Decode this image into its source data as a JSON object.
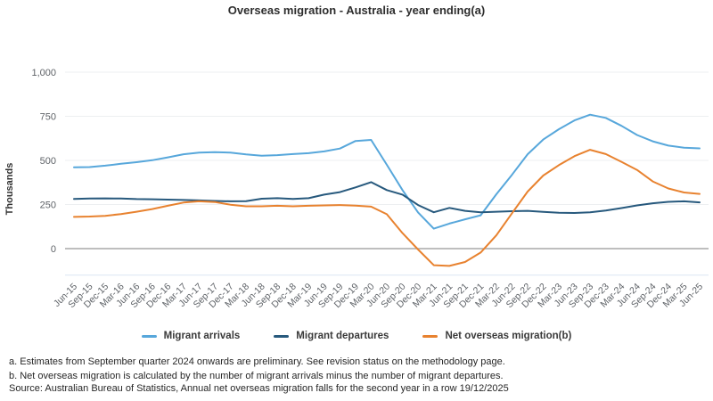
{
  "title": "Overseas migration - Australia - year ending(a)",
  "footnotes": [
    "a. Estimates from September quarter 2024 onwards are preliminary. See revision status on the methodology page.",
    "b. Net overseas migration is calculated by the number of migrant arrivals minus the number of migrant departures."
  ],
  "source": "Source: Australian Bureau of Statistics, Annual net overseas migration falls for the second year in a row 19/12/2025",
  "chart_data": {
    "type": "line",
    "title": "Overseas migration - Australia - year ending(a)",
    "xlabel": "",
    "ylabel": "Thousands",
    "ylim": [
      -150,
      1050
    ],
    "grid": true,
    "legend_position": "bottom",
    "yticks": [
      {
        "v": 0,
        "label": "0"
      },
      {
        "v": 250,
        "label": "250"
      },
      {
        "v": 500,
        "label": "500"
      },
      {
        "v": 750,
        "label": "750"
      },
      {
        "v": 1000,
        "label": "1,000"
      }
    ],
    "categories": [
      "Jun-15",
      "Sep-15",
      "Dec-15",
      "Mar-16",
      "Jun-16",
      "Sep-16",
      "Dec-16",
      "Mar-17",
      "Jun-17",
      "Sep-17",
      "Dec-17",
      "Mar-18",
      "Jun-18",
      "Sep-18",
      "Dec-18",
      "Mar-19",
      "Jun-19",
      "Sep-19",
      "Dec-19",
      "Mar-20",
      "Jun-20",
      "Sep-20",
      "Dec-20",
      "Mar-21",
      "Jun-21",
      "Sep-21",
      "Dec-21",
      "Mar-22",
      "Jun-22",
      "Sep-22",
      "Dec-22",
      "Mar-23",
      "Jun-23",
      "Sep-23",
      "Dec-23",
      "Mar-24",
      "Jun-24",
      "Sep-24",
      "Dec-24",
      "Mar-25",
      "Jun-25"
    ],
    "series": [
      {
        "name": "Migrant arrivals",
        "color": "#57A7DB",
        "values": [
          461,
          462,
          470,
          481,
          490,
          501,
          517,
          535,
          544,
          547,
          544,
          534,
          527,
          530,
          536,
          541,
          551,
          567,
          610,
          616,
          475,
          332,
          205,
          113,
          142,
          166,
          189,
          308,
          418,
          535,
          618,
          677,
          727,
          759,
          741,
          696,
          644,
          608,
          584,
          572,
          568
        ]
      },
      {
        "name": "Migrant departures",
        "color": "#27597D",
        "values": [
          282,
          284,
          285,
          284,
          281,
          280,
          278,
          276,
          273,
          270,
          268,
          269,
          283,
          286,
          282,
          286,
          306,
          320,
          347,
          377,
          332,
          306,
          247,
          206,
          231,
          214,
          206,
          209,
          212,
          214,
          208,
          203,
          202,
          206,
          216,
          230,
          245,
          257,
          265,
          268,
          262
        ]
      },
      {
        "name": "Net overseas migration(b)",
        "color": "#E8822F",
        "values": [
          180,
          182,
          186,
          196,
          209,
          224,
          243,
          261,
          268,
          264,
          249,
          240,
          240,
          243,
          240,
          243,
          245,
          247,
          244,
          238,
          195,
          88,
          -5,
          -94,
          -98,
          -76,
          -22,
          75,
          200,
          323,
          414,
          473,
          524,
          560,
          536,
          492,
          446,
          381,
          341,
          318,
          310
        ]
      }
    ],
    "colors": {
      "gridline": "#edeff1",
      "zero_line": "#a9a9a9",
      "plot_bottom_border": "#dce6f2",
      "tick_text": "#5f6368",
      "axis_title_text": "#333333"
    }
  }
}
